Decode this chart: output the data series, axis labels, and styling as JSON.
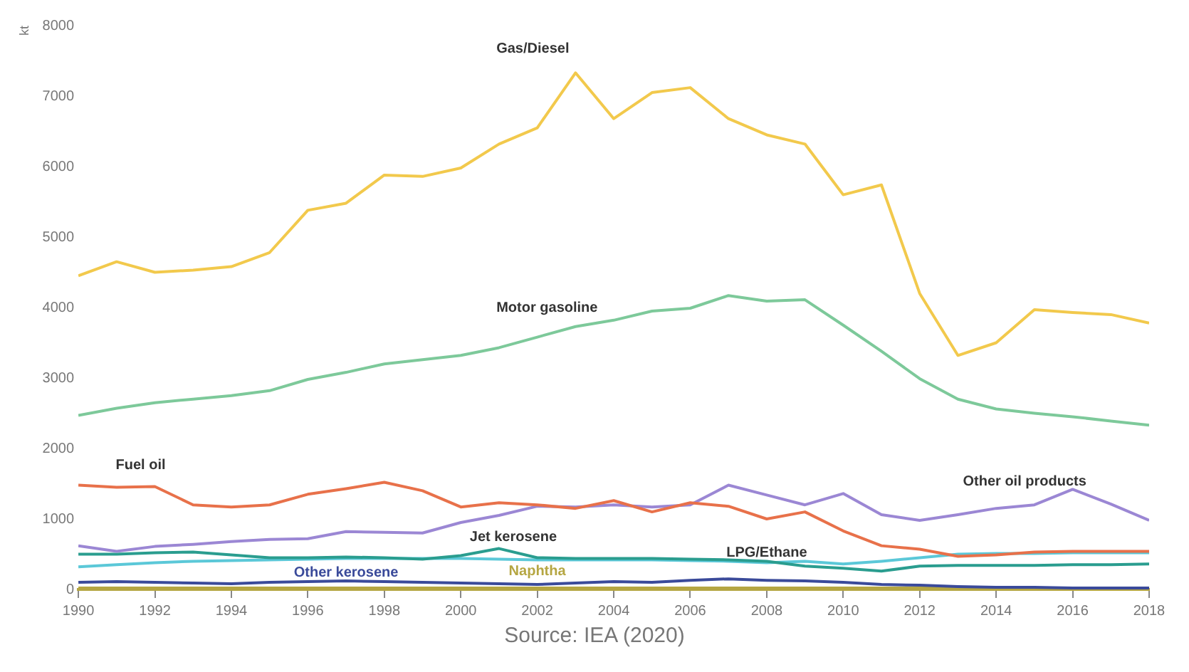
{
  "chart_data": {
    "type": "line",
    "ylabel": "kt",
    "annotations": [
      "Source: IEA (2020)"
    ],
    "x": [
      1990,
      1991,
      1992,
      1993,
      1994,
      1995,
      1996,
      1997,
      1998,
      1999,
      2000,
      2001,
      2002,
      2003,
      2004,
      2005,
      2006,
      2007,
      2008,
      2009,
      2010,
      2011,
      2012,
      2013,
      2014,
      2015,
      2016,
      2017,
      2018
    ],
    "xlim": [
      1990,
      2018
    ],
    "xticks": [
      1990,
      1992,
      1994,
      1996,
      1998,
      2000,
      2002,
      2004,
      2006,
      2008,
      2010,
      2012,
      2014,
      2016,
      2018
    ],
    "ylim": [
      0,
      8000
    ],
    "yticks": [
      0,
      1000,
      2000,
      3000,
      4000,
      5000,
      6000,
      7000,
      8000
    ],
    "grid": false,
    "legend": false,
    "marker": "none",
    "line_style": "solid",
    "series": [
      {
        "name": "Gas/Diesel",
        "color": "#f2c94c",
        "values": [
          4450,
          4650,
          4500,
          4530,
          4580,
          4780,
          5380,
          5480,
          5880,
          5860,
          5980,
          6320,
          6550,
          7330,
          6680,
          7050,
          7120,
          6680,
          6450,
          6320,
          5600,
          5740,
          4200,
          3320,
          3500,
          3970,
          3930,
          3900,
          3780
        ]
      },
      {
        "name": "Motor gasoline",
        "color": "#7dc99a",
        "values": [
          2470,
          2570,
          2650,
          2700,
          2750,
          2820,
          2980,
          3080,
          3200,
          3260,
          3320,
          3430,
          3580,
          3730,
          3820,
          3950,
          3990,
          4170,
          4090,
          4110,
          3750,
          3380,
          2990,
          2700,
          2560,
          2500,
          2450,
          2390,
          2330
        ]
      },
      {
        "name": "Fuel oil",
        "color": "#e8714a",
        "values": [
          1480,
          1450,
          1460,
          1200,
          1170,
          1200,
          1350,
          1430,
          1520,
          1400,
          1170,
          1230,
          1200,
          1150,
          1260,
          1100,
          1230,
          1180,
          1000,
          1100,
          830,
          620,
          570,
          470,
          490,
          530,
          540,
          540,
          540
        ]
      },
      {
        "name": "Other oil products",
        "color": "#9b87d4",
        "values": [
          620,
          540,
          610,
          640,
          680,
          710,
          720,
          820,
          810,
          800,
          950,
          1050,
          1180,
          1170,
          1200,
          1170,
          1200,
          1480,
          1340,
          1200,
          1360,
          1060,
          980,
          1060,
          1150,
          1200,
          1420,
          1210,
          980
        ]
      },
      {
        "name": "Jet kerosene",
        "color": "#2a9d8f",
        "values": [
          500,
          500,
          520,
          530,
          490,
          450,
          450,
          460,
          450,
          430,
          480,
          580,
          450,
          440,
          440,
          440,
          430,
          420,
          400,
          330,
          300,
          260,
          330,
          340,
          340,
          340,
          350,
          350,
          360
        ]
      },
      {
        "name": "LPG/Ethane",
        "color": "#5bc8d8",
        "values": [
          320,
          350,
          380,
          400,
          410,
          420,
          430,
          440,
          440,
          440,
          440,
          430,
          420,
          420,
          420,
          420,
          410,
          400,
          380,
          400,
          360,
          400,
          450,
          500,
          510,
          510,
          520,
          520,
          520
        ]
      },
      {
        "name": "Other kerosene",
        "color": "#3a4a9a",
        "values": [
          100,
          110,
          100,
          90,
          80,
          100,
          110,
          120,
          110,
          100,
          90,
          80,
          70,
          90,
          110,
          100,
          130,
          150,
          130,
          120,
          100,
          70,
          60,
          40,
          30,
          30,
          20,
          20,
          20
        ]
      },
      {
        "name": "Naphtha",
        "color": "#b5a642",
        "values": [
          20,
          20,
          20,
          20,
          20,
          20,
          20,
          20,
          20,
          20,
          20,
          20,
          20,
          20,
          20,
          20,
          20,
          20,
          20,
          20,
          20,
          20,
          20,
          20,
          20,
          20,
          20,
          20,
          20
        ]
      }
    ]
  }
}
